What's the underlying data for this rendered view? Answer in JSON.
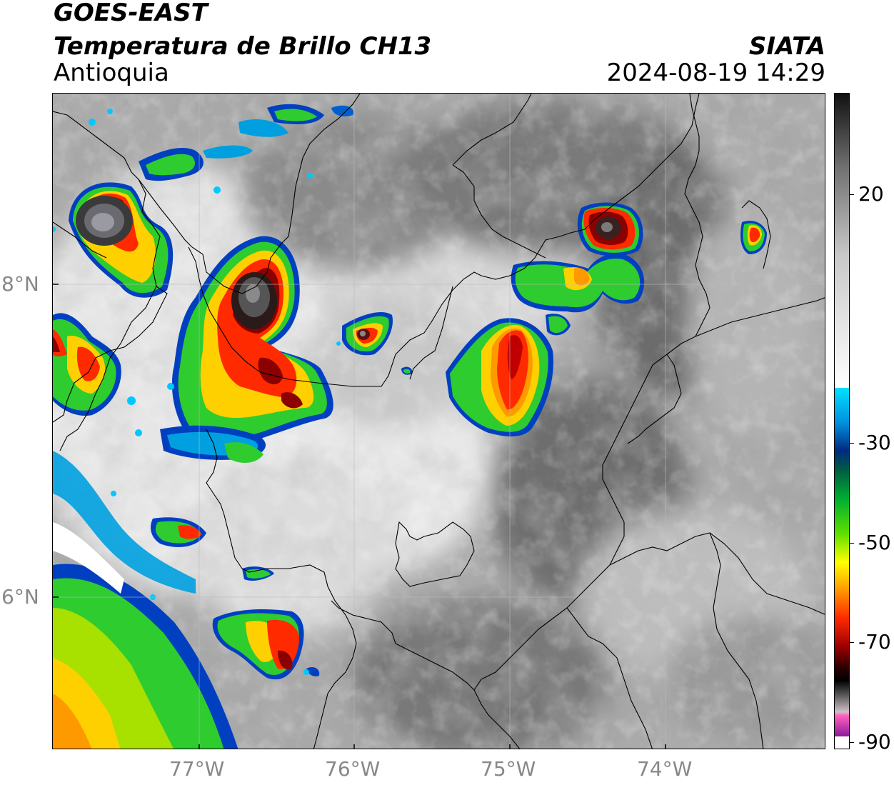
{
  "header": {
    "line1": "GOES-EAST",
    "line2": "Temperatura de Brillo CH13",
    "line3": "Antioquia",
    "agency": "SIATA",
    "datetime": "2024-08-19 14:29"
  },
  "axes": {
    "lon_labels": [
      "77°W",
      "76°W",
      "75°W",
      "74°W"
    ],
    "lat_labels": [
      "8°N",
      "6°N"
    ]
  },
  "colorbar": {
    "labels": [
      "20",
      "-30",
      "-50",
      "-70",
      "-90"
    ]
  },
  "colors": {
    "cloud_top_black": "#1a0000",
    "deep_red": "#8b0000",
    "red": "#ff2a00",
    "orange": "#ff9900",
    "yellow": "#ffff00",
    "green": "#2ecc2e",
    "blue": "#0040c0",
    "cyan": "#00c8ff"
  }
}
